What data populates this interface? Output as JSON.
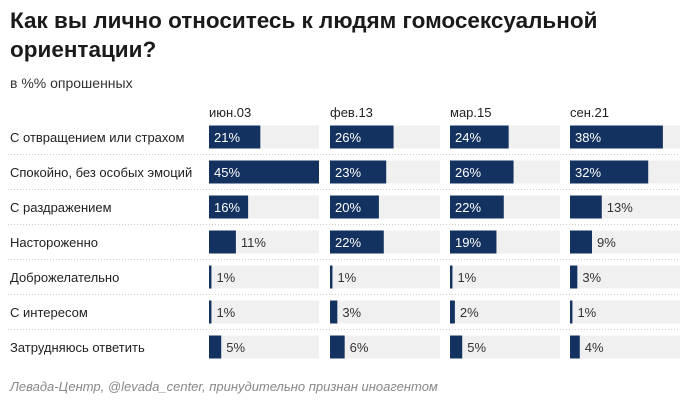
{
  "chart_data": {
    "type": "bar",
    "title": "Как вы лично относитесь к людям гомосексуальной ориентации?",
    "subtitle": "в %% опрошенных",
    "source": "Левада-Центр, @levada_center, принудительно признан иноагентом",
    "columns": [
      "июн.03",
      "фев.13",
      "мар.15",
      "сен.21"
    ],
    "categories": [
      "С отвращением или страхом",
      "Спокойно, без особых эмоций",
      "С раздражением",
      "Настороженно",
      "Доброжелательно",
      "С интересом",
      "Затрудняюсь ответить"
    ],
    "series": [
      {
        "name": "июн.03",
        "values": [
          21,
          45,
          16,
          11,
          1,
          1,
          5
        ]
      },
      {
        "name": "фев.13",
        "values": [
          26,
          23,
          20,
          22,
          1,
          3,
          6
        ]
      },
      {
        "name": "мар.15",
        "values": [
          24,
          26,
          22,
          19,
          1,
          2,
          5
        ]
      },
      {
        "name": "сен.21",
        "values": [
          38,
          32,
          13,
          9,
          3,
          1,
          4
        ]
      }
    ],
    "xlim": [
      0,
      45
    ],
    "unit": "%",
    "bar_color": "#14325f",
    "track_color": "#f0f0f0"
  }
}
